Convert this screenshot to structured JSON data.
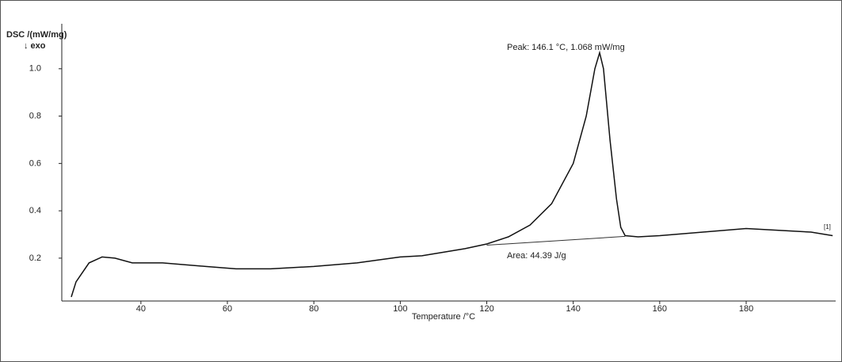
{
  "chart_data": {
    "type": "line",
    "y_label": "DSC /(mW/mg)",
    "y_sublabel": "↓ exo",
    "x_label": "Temperature /°C",
    "annotations": [
      "Peak: 146.1 °C, 1.068 mW/mg",
      "Area: 44.39 J/g",
      "[1]"
    ],
    "x": [
      23.9,
      25,
      28,
      31,
      34,
      38,
      45,
      55,
      62,
      70,
      80,
      90,
      100,
      105,
      110,
      115,
      120,
      125,
      130,
      135,
      140,
      143,
      145,
      146.1,
      147,
      148.5,
      150,
      151,
      152,
      155,
      160,
      170,
      180,
      185,
      190,
      195,
      200
    ],
    "values": [
      0.036,
      0.1,
      0.18,
      0.205,
      0.2,
      0.18,
      0.18,
      0.165,
      0.155,
      0.155,
      0.165,
      0.18,
      0.205,
      0.21,
      0.225,
      0.24,
      0.26,
      0.29,
      0.34,
      0.43,
      0.6,
      0.8,
      1.0,
      1.068,
      1.0,
      0.7,
      0.45,
      0.33,
      0.295,
      0.29,
      0.295,
      0.31,
      0.325,
      0.32,
      0.315,
      0.31,
      0.295
    ],
    "color": "#111111",
    "baseline": {
      "x": [
        120,
        152
      ],
      "values": [
        0.255,
        0.292
      ]
    },
    "xlim": [
      21.7,
      200.7
    ],
    "ylim": [
      0.019,
      1.19
    ],
    "xticks": [
      40,
      60,
      80,
      100,
      120,
      140,
      160,
      180
    ],
    "yticks": [
      {
        "value": 1,
        "label": "1.0"
      },
      0.8,
      0.6,
      0.4,
      0.2
    ]
  }
}
